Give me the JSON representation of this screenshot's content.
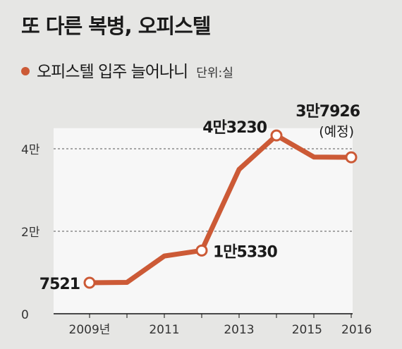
{
  "title": "또 다른 복병, 오피스텔",
  "legend": {
    "label": "오피스텔 입주 늘어나니",
    "unit_label": "단위:실"
  },
  "colors": {
    "series": "#cc5a36",
    "plot_bg": "#f7f7f7",
    "page_bg": "#e6e6e4"
  },
  "chart_data": {
    "type": "line",
    "x": [
      2009,
      2010,
      2011,
      2012,
      2013,
      2014,
      2015,
      2016
    ],
    "series": [
      {
        "name": "오피스텔 입주 늘어나니",
        "values": [
          7521,
          7600,
          14000,
          15330,
          35000,
          43230,
          38000,
          37926
        ]
      }
    ],
    "x_tick_labels": [
      {
        "x": 2009,
        "text": "2009년"
      },
      {
        "x": 2011,
        "text": "2011"
      },
      {
        "x": 2013,
        "text": "2013"
      },
      {
        "x": 2015,
        "text": "2015"
      },
      {
        "x": 2016,
        "text": "2016"
      }
    ],
    "y_ticks": [
      {
        "value": 0,
        "text": "0"
      },
      {
        "value": 20000,
        "text": "2만"
      },
      {
        "value": 40000,
        "text": "4만"
      }
    ],
    "xlim": [
      2009,
      2016
    ],
    "ylim": [
      0,
      45000
    ],
    "grid": "horizontal dashed",
    "annotations": [
      {
        "index": 0,
        "text": "7521"
      },
      {
        "index": 3,
        "text": "1만5330"
      },
      {
        "index": 5,
        "text": "4만3230"
      },
      {
        "index": 7,
        "text": "3만7926",
        "sub": "(예정)"
      }
    ]
  }
}
